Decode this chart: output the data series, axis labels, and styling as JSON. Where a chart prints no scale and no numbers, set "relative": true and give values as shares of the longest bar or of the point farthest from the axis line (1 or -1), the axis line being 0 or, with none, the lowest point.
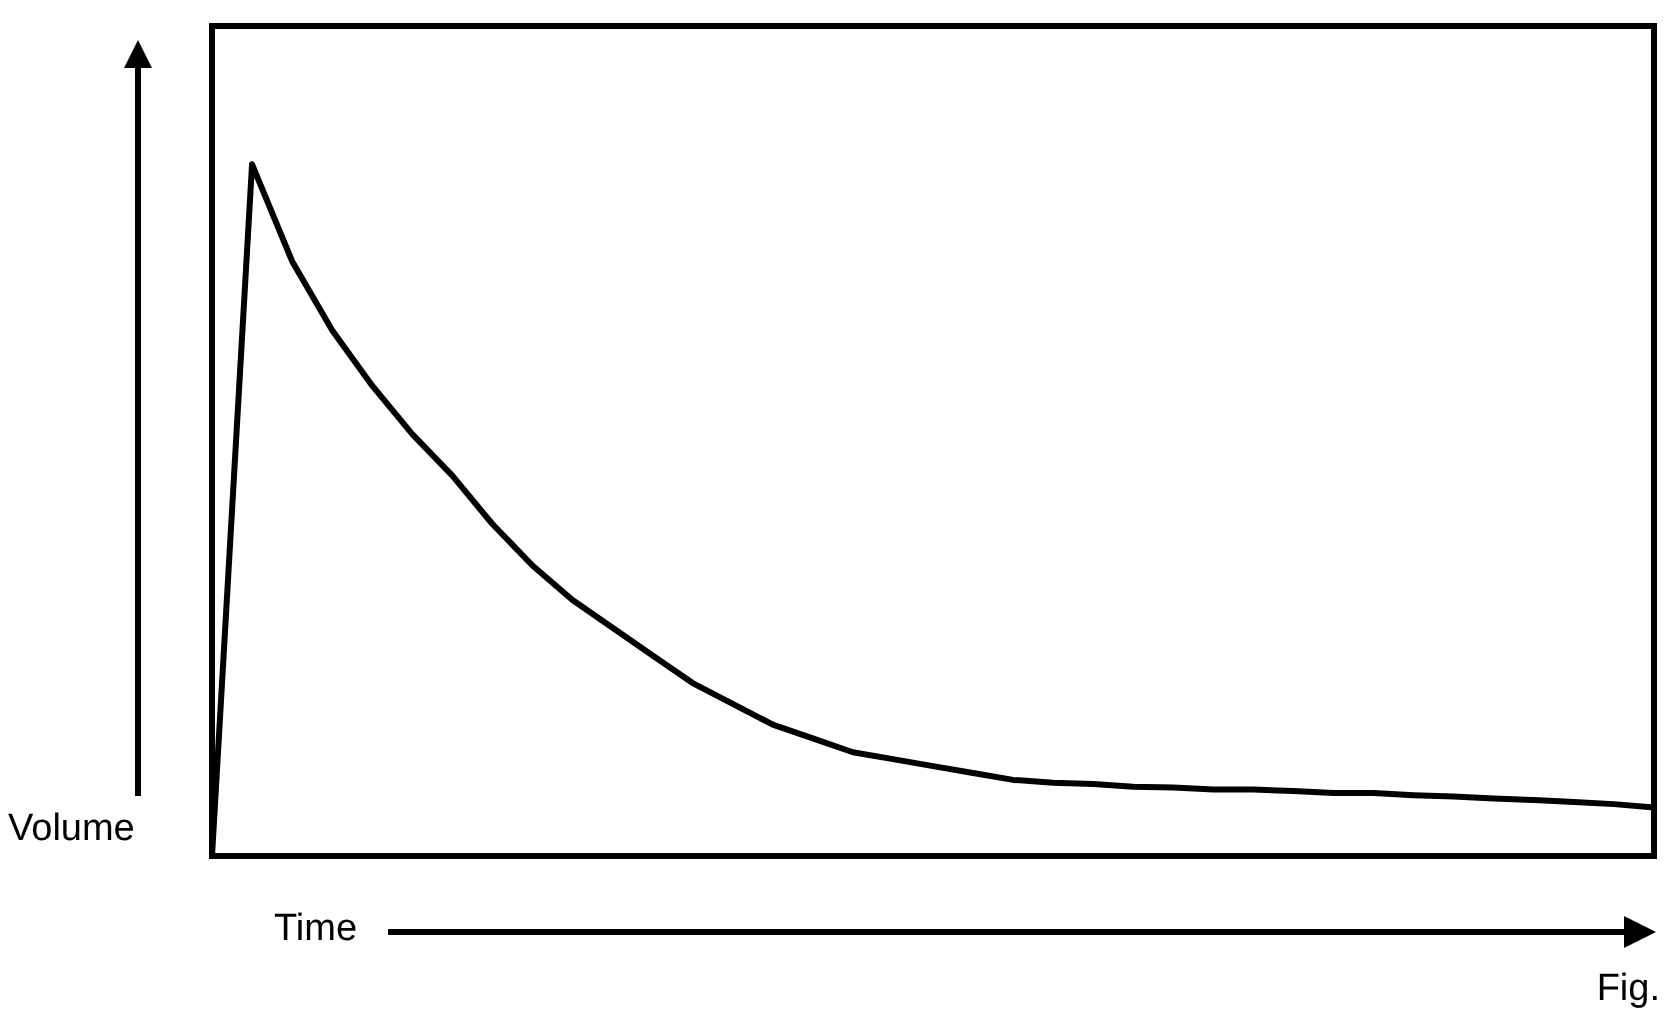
{
  "chart_data": {
    "type": "line",
    "xlabel": "Time",
    "ylabel": "Volume",
    "annotations": [
      "Fig."
    ],
    "categories": [
      null,
      null,
      null,
      null,
      null,
      null,
      null,
      null,
      null,
      null,
      null,
      null,
      null,
      null,
      null,
      null,
      null,
      null,
      null,
      null,
      null,
      null,
      null,
      null,
      null,
      null,
      null,
      null,
      null,
      null,
      null,
      null,
      null,
      null,
      null,
      null,
      null
    ],
    "series": [
      {
        "color": "#000000",
        "values": [
          0,
          1,
          0.86,
          0.76,
          0.68,
          0.61,
          0.55,
          0.48,
          0.42,
          0.37,
          0.33,
          0.29,
          0.25,
          0.22,
          0.19,
          0.17,
          0.15,
          0.14,
          0.13,
          0.12,
          0.11,
          0.106,
          0.104,
          0.1,
          0.099,
          0.096,
          0.096,
          0.094,
          0.091,
          0.091,
          0.088,
          0.086,
          0.083,
          0.081,
          0.078,
          0.075,
          0.07
        ]
      }
    ],
    "relative": true,
    "grid": false,
    "legend": false,
    "marker": "none",
    "line_style": "solid"
  }
}
